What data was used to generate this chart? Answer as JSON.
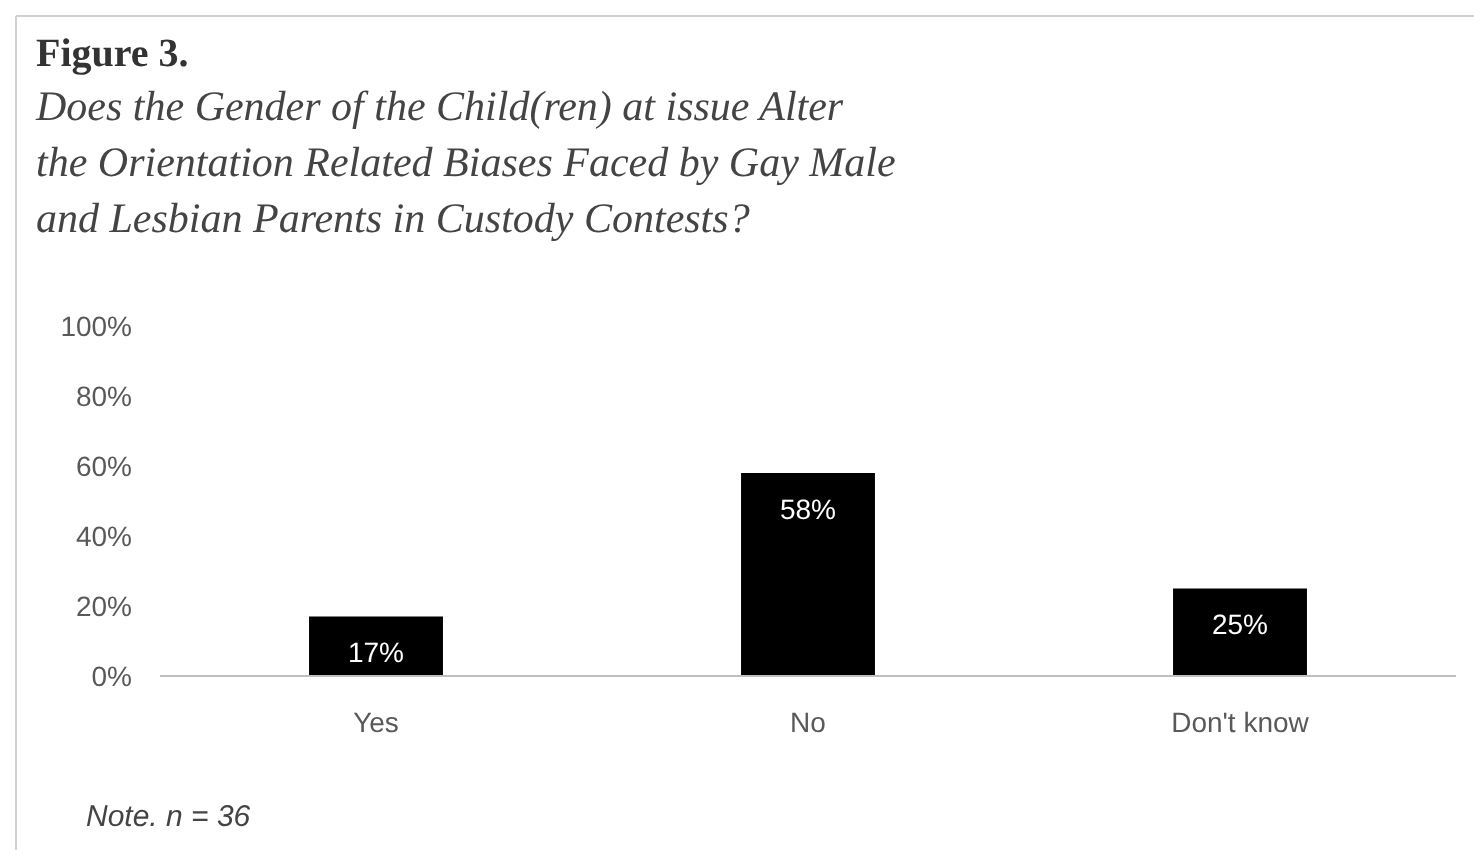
{
  "chart_data": {
    "type": "bar",
    "title": "Figure 3.",
    "subtitle": "Does the Gender of the Child(ren) at issue Alter the Orientation Related Biases Faced by Gay Male and Lesbian Parents in Custody Contests?",
    "categories": [
      "Yes",
      "No",
      "Don't know"
    ],
    "values": [
      17,
      58,
      25
    ],
    "color": "#000000",
    "ylim": [
      0,
      100
    ],
    "yticks": [
      {
        "value": 0,
        "label": "0%"
      },
      {
        "value": 20,
        "label": "20%"
      },
      {
        "value": 40,
        "label": "40%"
      },
      {
        "value": 60,
        "label": "60%"
      },
      {
        "value": 80,
        "label": "80%"
      },
      {
        "value": 100,
        "label": "100%"
      }
    ],
    "value_labels": [
      "17%",
      "58%",
      "25%"
    ],
    "annotations": [
      "Note. n = 36"
    ]
  }
}
